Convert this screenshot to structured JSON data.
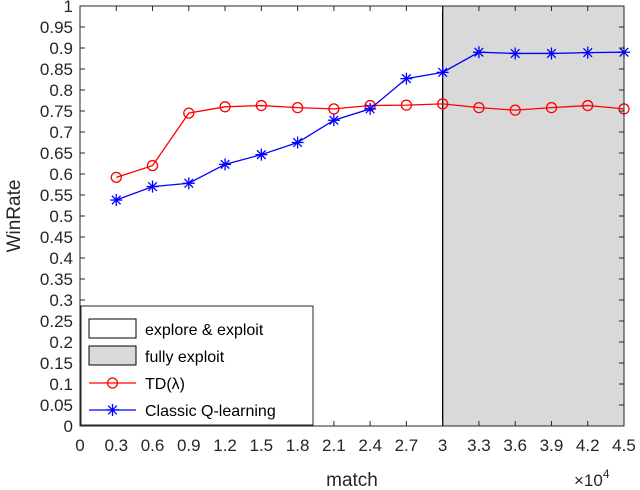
{
  "chart_data": {
    "type": "line",
    "xlabel": "match",
    "ylabel": "WinRate",
    "x_multiplier_label": "×10",
    "x_multiplier_exponent": "4",
    "xlim": [
      0,
      4.5
    ],
    "ylim": [
      0,
      1
    ],
    "x_ticks": [
      0,
      0.3,
      0.6,
      0.9,
      1.2,
      1.5,
      1.8,
      2.1,
      2.4,
      2.7,
      3,
      3.3,
      3.6,
      3.9,
      4.2,
      4.5
    ],
    "x_tick_labels": [
      "0",
      "0.3",
      "0.6",
      "0.9",
      "1.2",
      "1.5",
      "1.8",
      "2.1",
      "2.4",
      "2.7",
      "3",
      "3.3",
      "3.6",
      "3.9",
      "4.2",
      "4.5"
    ],
    "y_ticks": [
      0,
      0.05,
      0.1,
      0.15,
      0.2,
      0.25,
      0.3,
      0.35,
      0.4,
      0.45,
      0.5,
      0.55,
      0.6,
      0.65,
      0.7,
      0.75,
      0.8,
      0.85,
      0.9,
      0.95,
      1
    ],
    "y_tick_labels": [
      "0",
      "0.05",
      "0.1",
      "0.15",
      "0.2",
      "0.25",
      "0.3",
      "0.35",
      "0.4",
      "0.45",
      "0.5",
      "0.55",
      "0.6",
      "0.65",
      "0.7",
      "0.75",
      "0.8",
      "0.85",
      "0.9",
      "0.95",
      "1"
    ],
    "regions": [
      {
        "name": "explore & exploit",
        "x_range": [
          0,
          3
        ],
        "color": "#ffffff"
      },
      {
        "name": "fully exploit",
        "x_range": [
          3,
          4.5
        ],
        "color": "#d9d9d9"
      }
    ],
    "x": [
      0.3,
      0.6,
      0.9,
      1.2,
      1.5,
      1.8,
      2.1,
      2.4,
      2.7,
      3.0,
      3.3,
      3.6,
      3.9,
      4.2,
      4.5
    ],
    "series": [
      {
        "name": "TD(λ)",
        "color": "#ff0000",
        "marker": "circle",
        "values": [
          0.592,
          0.62,
          0.745,
          0.76,
          0.763,
          0.758,
          0.755,
          0.763,
          0.764,
          0.767,
          0.758,
          0.752,
          0.758,
          0.763,
          0.755
        ]
      },
      {
        "name": "Classic Q-learning",
        "color": "#0000ff",
        "marker": "asterisk",
        "values": [
          0.538,
          0.57,
          0.578,
          0.623,
          0.646,
          0.675,
          0.728,
          0.755,
          0.827,
          0.842,
          0.89,
          0.887,
          0.887,
          0.889,
          0.89
        ]
      }
    ],
    "legend_position": "bottom-left"
  }
}
